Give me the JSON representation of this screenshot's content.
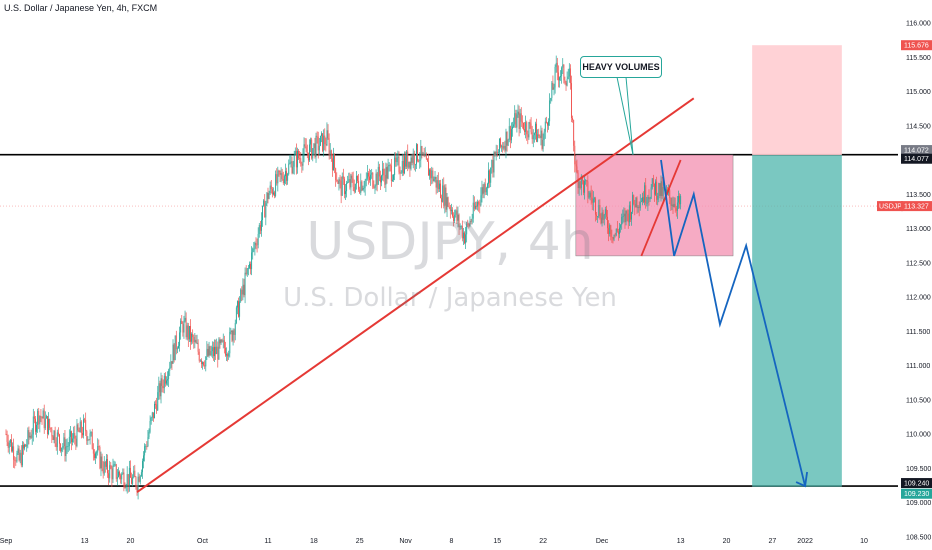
{
  "header": {
    "title": "U.S. Dollar / Japanese Yen, 4h, FXCM"
  },
  "watermark": {
    "symbol_line": "USDJPY, 4h",
    "name_line": "U.S. Dollar / Japanese Yen"
  },
  "annotation": {
    "text": "HEAVY VOLUMES"
  },
  "colors": {
    "up": "#26a69a",
    "down": "#ef5350",
    "trendline": "#e53935",
    "projection": "#1565c0",
    "range_box": "#f48fb1",
    "target_zone": "#4db6ac",
    "stop_zone": "#ffcdd2",
    "level_line": "#000000"
  },
  "chart_data": {
    "type": "candlestick",
    "symbol": "USDJPY",
    "interval": "4h",
    "y_axis": {
      "ticks": [
        "116.000",
        "115.500",
        "115.000",
        "114.500",
        "114.000",
        "113.500",
        "113.000",
        "112.500",
        "112.000",
        "111.500",
        "111.000",
        "110.500",
        "110.000",
        "109.500",
        "109.000",
        "108.500"
      ],
      "range": [
        108.5,
        116.0
      ]
    },
    "x_axis": {
      "ticks": [
        "Sep",
        "13",
        "20",
        "Oct",
        "11",
        "18",
        "25",
        "Nov",
        "8",
        "15",
        "22",
        "Dec",
        "13",
        "20",
        "27",
        "2022",
        "10"
      ]
    },
    "price_labels": [
      {
        "text": "115.676",
        "value": 115.676,
        "color": "#ef5350"
      },
      {
        "text": "114.072",
        "value": 114.072,
        "color": "#787b86"
      },
      {
        "text": "114.077",
        "value": 114.077,
        "color": "#131722"
      },
      {
        "text": "USDJPY",
        "value": 113.327,
        "color": "#ef5350"
      },
      {
        "text": "113.327",
        "value": 113.327,
        "color": "#ef5350"
      },
      {
        "text": "109.240",
        "value": 109.24,
        "color": "#131722"
      },
      {
        "text": "109.230",
        "value": 109.23,
        "color": "#26a69a"
      }
    ],
    "horizontal_levels": [
      114.077,
      109.24
    ],
    "last_price": 113.327,
    "path_keypoints": [
      {
        "date": "Sep 1",
        "close": 110.0
      },
      {
        "date": "Sep 3",
        "close": 109.6
      },
      {
        "date": "Sep 6",
        "close": 110.3
      },
      {
        "date": "Sep 10",
        "close": 109.8
      },
      {
        "date": "Sep 13",
        "close": 110.1
      },
      {
        "date": "Sep 16",
        "close": 109.5
      },
      {
        "date": "Sep 21",
        "close": 109.3
      },
      {
        "date": "Sep 24",
        "close": 110.5
      },
      {
        "date": "Sep 28",
        "close": 111.6
      },
      {
        "date": "Oct 1",
        "close": 111.1
      },
      {
        "date": "Oct 5",
        "close": 111.3
      },
      {
        "date": "Oct 11",
        "close": 113.5
      },
      {
        "date": "Oct 15",
        "close": 114.0
      },
      {
        "date": "Oct 20",
        "close": 114.3
      },
      {
        "date": "Oct 22",
        "close": 113.6
      },
      {
        "date": "Oct 26",
        "close": 113.7
      },
      {
        "date": "Oct 29",
        "close": 113.8
      },
      {
        "date": "Nov 3",
        "close": 114.1
      },
      {
        "date": "Nov 8",
        "close": 113.3
      },
      {
        "date": "Nov 10",
        "close": 112.9
      },
      {
        "date": "Nov 15",
        "close": 114.1
      },
      {
        "date": "Nov 18",
        "close": 114.6
      },
      {
        "date": "Nov 22",
        "close": 114.3
      },
      {
        "date": "Nov 24",
        "close": 115.3
      },
      {
        "date": "Nov 26",
        "close": 115.2
      },
      {
        "date": "Nov 27",
        "close": 113.8
      },
      {
        "date": "Nov 29",
        "close": 113.5
      },
      {
        "date": "Dec 3",
        "close": 112.9
      },
      {
        "date": "Dec 6",
        "close": 113.4
      },
      {
        "date": "Dec 9",
        "close": 113.6
      },
      {
        "date": "Dec 13",
        "close": 113.33
      }
    ],
    "drawings": {
      "trendline": [
        {
          "date": "Sep 21",
          "price": 109.15
        },
        {
          "date": "Dec 15",
          "price": 114.9
        }
      ],
      "small_trendline": [
        {
          "date": "Dec 7",
          "price": 112.6
        },
        {
          "date": "Dec 13",
          "price": 114.0
        }
      ],
      "range_box": {
        "from": "Nov 27",
        "to": "Dec 21",
        "top": 114.077,
        "bottom": 112.6
      },
      "projection": [
        {
          "date": "Dec 10",
          "price": 114.0
        },
        {
          "date": "Dec 12",
          "price": 112.6
        },
        {
          "date": "Dec 15",
          "price": 113.5
        },
        {
          "date": "Dec 19",
          "price": 111.6
        },
        {
          "date": "Dec 23",
          "price": 112.75
        },
        {
          "date": "Jan 1",
          "price": 109.24
        }
      ],
      "short_position": {
        "from": "Dec 23",
        "to": "Jan 6",
        "entry": 114.072,
        "stop": 115.676,
        "target": 109.23
      }
    }
  }
}
